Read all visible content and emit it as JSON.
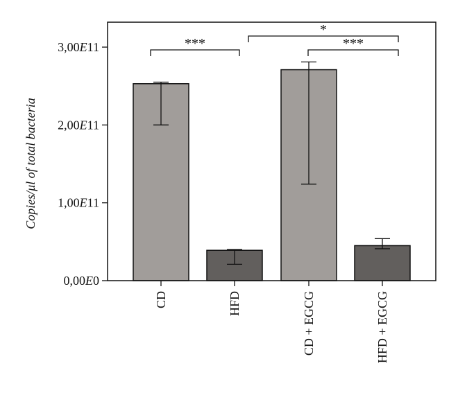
{
  "chart_data": {
    "type": "bar",
    "categories": [
      "CD",
      "HFD",
      "CD + EGCG",
      "HFD + EGCG"
    ],
    "values": [
      253000000000.0,
      39000000000.0,
      271000000000.0,
      45000000000.0
    ],
    "error_low": [
      200000000000.0,
      21000000000.0,
      124000000000.0,
      41000000000.0
    ],
    "error_high": [
      255000000000.0,
      40000000000.0,
      281000000000.0,
      54000000000.0
    ],
    "bar_colors": [
      "#a19d9a",
      "#625f5d",
      "#a19d9a",
      "#625f5d"
    ],
    "ylabel": "Copies/μl of total bacteria",
    "ylim": [
      0,
      300000000000.0
    ],
    "yticks": [
      {
        "value": 0,
        "mantissa": "0,00",
        "exp": "0"
      },
      {
        "value": 100000000000.0,
        "mantissa": "1,00",
        "exp": "11"
      },
      {
        "value": 200000000000.0,
        "mantissa": "2,00",
        "exp": "11"
      },
      {
        "value": 300000000000.0,
        "mantissa": "3,00",
        "exp": "11"
      }
    ],
    "significance": [
      {
        "from": 0,
        "to": 1,
        "label": "***"
      },
      {
        "from": 1,
        "to": 3,
        "label": "*"
      },
      {
        "from": 2,
        "to": 3,
        "label": "***"
      }
    ],
    "grid": false,
    "legend": "none"
  }
}
